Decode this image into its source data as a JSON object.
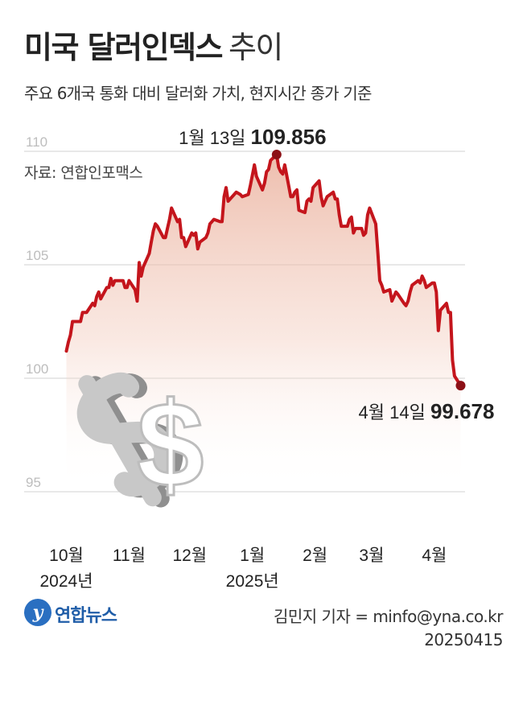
{
  "header": {
    "title_bold": "미국 달러인덱스",
    "title_light": "추이",
    "subtitle": "주요 6개국 통화 대비 달러화 가치, 현지시간 종가 기준",
    "source": "자료: 연합인포맥스"
  },
  "footer": {
    "logo_text": "연합뉴스",
    "logo_glyph": "y",
    "credit": "김민지 기자 = minfo@yna.co.kr",
    "date": "20250415"
  },
  "colors": {
    "line": "#c4151c",
    "marker": "#8c1016",
    "area_top": "#e8a892",
    "grid": "#d0d0d0",
    "tick_text": "#bdbdbd",
    "dollar_sign": "#bebebe"
  },
  "icon": "dollar-sign-icon",
  "chart_data": {
    "type": "line",
    "ylim": [
      95,
      110
    ],
    "y_ticks": [
      95,
      100,
      105,
      110
    ],
    "x_ticks": [
      {
        "label": "10월",
        "year": "2024년",
        "date": "2024-10-01"
      },
      {
        "label": "11월",
        "year": "",
        "date": "2024-11-01"
      },
      {
        "label": "12월",
        "year": "",
        "date": "2024-12-01"
      },
      {
        "label": "1월",
        "year": "2025년",
        "date": "2025-01-01"
      },
      {
        "label": "2월",
        "year": "",
        "date": "2025-02-01"
      },
      {
        "label": "3월",
        "year": "",
        "date": "2025-03-01"
      },
      {
        "label": "4월",
        "year": "",
        "date": "2025-04-01"
      }
    ],
    "annotations": [
      {
        "date": "2025-01-13",
        "value": 109.856,
        "date_label": "1월 13일",
        "value_label": "109.856",
        "position": "above"
      },
      {
        "date": "2025-04-14",
        "value": 99.678,
        "date_label": "4월 14일",
        "value_label": "99.678",
        "position": "below"
      }
    ],
    "series": [
      {
        "points": [
          [
            "2024-10-01",
            101.2
          ],
          [
            "2024-10-02",
            101.6
          ],
          [
            "2024-10-03",
            101.9
          ],
          [
            "2024-10-04",
            102.5
          ],
          [
            "2024-10-07",
            102.5
          ],
          [
            "2024-10-08",
            102.5
          ],
          [
            "2024-10-09",
            102.9
          ],
          [
            "2024-10-10",
            102.9
          ],
          [
            "2024-10-11",
            102.9
          ],
          [
            "2024-10-14",
            103.3
          ],
          [
            "2024-10-15",
            103.2
          ],
          [
            "2024-10-16",
            103.6
          ],
          [
            "2024-10-17",
            103.8
          ],
          [
            "2024-10-18",
            103.5
          ],
          [
            "2024-10-21",
            104.0
          ],
          [
            "2024-10-22",
            104.0
          ],
          [
            "2024-10-23",
            104.4
          ],
          [
            "2024-10-24",
            104.1
          ],
          [
            "2024-10-25",
            104.3
          ],
          [
            "2024-10-28",
            104.3
          ],
          [
            "2024-10-29",
            104.3
          ],
          [
            "2024-10-30",
            104.0
          ],
          [
            "2024-10-31",
            104.0
          ],
          [
            "2024-11-01",
            104.3
          ],
          [
            "2024-11-04",
            103.9
          ],
          [
            "2024-11-05",
            103.4
          ],
          [
            "2024-11-06",
            105.1
          ],
          [
            "2024-11-07",
            104.5
          ],
          [
            "2024-11-08",
            104.9
          ],
          [
            "2024-11-11",
            105.5
          ],
          [
            "2024-11-12",
            106.0
          ],
          [
            "2024-11-13",
            106.5
          ],
          [
            "2024-11-14",
            106.8
          ],
          [
            "2024-11-15",
            106.7
          ],
          [
            "2024-11-18",
            106.2
          ],
          [
            "2024-11-19",
            106.2
          ],
          [
            "2024-11-20",
            106.6
          ],
          [
            "2024-11-21",
            107.0
          ],
          [
            "2024-11-22",
            107.5
          ],
          [
            "2024-11-25",
            106.9
          ],
          [
            "2024-11-26",
            107.0
          ],
          [
            "2024-11-27",
            106.2
          ],
          [
            "2024-11-28",
            106.2
          ],
          [
            "2024-11-29",
            105.8
          ],
          [
            "2024-12-02",
            106.4
          ],
          [
            "2024-12-03",
            106.3
          ],
          [
            "2024-12-04",
            106.4
          ],
          [
            "2024-12-05",
            105.7
          ],
          [
            "2024-12-06",
            106.0
          ],
          [
            "2024-12-09",
            106.2
          ],
          [
            "2024-12-10",
            106.4
          ],
          [
            "2024-12-11",
            106.8
          ],
          [
            "2024-12-12",
            106.9
          ],
          [
            "2024-12-13",
            107.0
          ],
          [
            "2024-12-16",
            106.9
          ],
          [
            "2024-12-17",
            106.9
          ],
          [
            "2024-12-18",
            108.0
          ],
          [
            "2024-12-19",
            108.4
          ],
          [
            "2024-12-20",
            107.8
          ],
          [
            "2024-12-23",
            108.1
          ],
          [
            "2024-12-24",
            108.2
          ],
          [
            "2024-12-26",
            108.1
          ],
          [
            "2024-12-27",
            108.0
          ],
          [
            "2024-12-30",
            108.1
          ],
          [
            "2024-12-31",
            108.5
          ],
          [
            "2025-01-02",
            109.4
          ],
          [
            "2025-01-03",
            108.9
          ],
          [
            "2025-01-06",
            108.3
          ],
          [
            "2025-01-07",
            108.6
          ],
          [
            "2025-01-08",
            109.1
          ],
          [
            "2025-01-09",
            109.2
          ],
          [
            "2025-01-10",
            109.6
          ],
          [
            "2025-01-13",
            109.856
          ],
          [
            "2025-01-14",
            109.3
          ],
          [
            "2025-01-15",
            109.1
          ],
          [
            "2025-01-16",
            109.0
          ],
          [
            "2025-01-17",
            109.4
          ],
          [
            "2025-01-20",
            108.0
          ],
          [
            "2025-01-21",
            108.0
          ],
          [
            "2025-01-22",
            108.2
          ],
          [
            "2025-01-23",
            108.3
          ],
          [
            "2025-01-24",
            107.4
          ],
          [
            "2025-01-27",
            107.3
          ],
          [
            "2025-01-28",
            107.8
          ],
          [
            "2025-01-29",
            107.9
          ],
          [
            "2025-01-30",
            107.8
          ],
          [
            "2025-01-31",
            108.4
          ],
          [
            "2025-02-03",
            108.7
          ],
          [
            "2025-02-04",
            108.0
          ],
          [
            "2025-02-05",
            107.6
          ],
          [
            "2025-02-06",
            107.8
          ],
          [
            "2025-02-07",
            108.0
          ],
          [
            "2025-02-10",
            108.2
          ],
          [
            "2025-02-11",
            107.9
          ],
          [
            "2025-02-12",
            107.9
          ],
          [
            "2025-02-13",
            107.2
          ],
          [
            "2025-02-14",
            106.7
          ],
          [
            "2025-02-17",
            106.7
          ],
          [
            "2025-02-18",
            107.0
          ],
          [
            "2025-02-19",
            107.1
          ],
          [
            "2025-02-20",
            106.4
          ],
          [
            "2025-02-21",
            106.6
          ],
          [
            "2025-02-24",
            106.6
          ],
          [
            "2025-02-25",
            106.3
          ],
          [
            "2025-02-26",
            106.4
          ],
          [
            "2025-02-27",
            107.2
          ],
          [
            "2025-02-28",
            107.5
          ],
          [
            "2025-03-03",
            106.8
          ],
          [
            "2025-03-04",
            105.6
          ],
          [
            "2025-03-05",
            104.3
          ],
          [
            "2025-03-06",
            104.1
          ],
          [
            "2025-03-07",
            103.8
          ],
          [
            "2025-03-10",
            103.9
          ],
          [
            "2025-03-11",
            103.4
          ],
          [
            "2025-03-12",
            103.6
          ],
          [
            "2025-03-13",
            103.8
          ],
          [
            "2025-03-14",
            103.7
          ],
          [
            "2025-03-17",
            103.3
          ],
          [
            "2025-03-18",
            103.2
          ],
          [
            "2025-03-19",
            103.4
          ],
          [
            "2025-03-20",
            103.8
          ],
          [
            "2025-03-21",
            104.1
          ],
          [
            "2025-03-24",
            104.3
          ],
          [
            "2025-03-25",
            104.2
          ],
          [
            "2025-03-26",
            104.5
          ],
          [
            "2025-03-27",
            104.3
          ],
          [
            "2025-03-28",
            104.0
          ],
          [
            "2025-03-31",
            104.2
          ],
          [
            "2025-04-01",
            104.2
          ],
          [
            "2025-04-02",
            103.8
          ],
          [
            "2025-04-03",
            102.1
          ],
          [
            "2025-04-04",
            103.0
          ],
          [
            "2025-04-07",
            103.3
          ],
          [
            "2025-04-08",
            102.9
          ],
          [
            "2025-04-09",
            102.9
          ],
          [
            "2025-04-10",
            100.8
          ],
          [
            "2025-04-11",
            100.1
          ],
          [
            "2025-04-14",
            99.678
          ]
        ]
      }
    ]
  }
}
